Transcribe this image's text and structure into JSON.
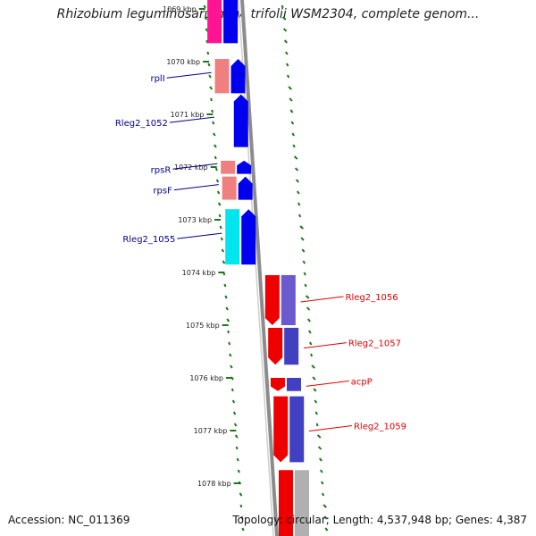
{
  "title": "Rhizobium leguminosarum bv. trifolii WSM2304, complete genom...",
  "footer": {
    "accession": "Accession: NC_011369",
    "stats": "Topology: circular; Length: 4,537,948 bp; Genes: 4,387"
  },
  "colors": {
    "backbone": "#8c8c8c",
    "ticks": "#1a7a1a",
    "left_labels": "#00008b",
    "right_labels": "#dd0000"
  },
  "scale": {
    "unit": "kbp",
    "ticks": [
      {
        "kbp": 1069,
        "label": "1069 kbp"
      },
      {
        "kbp": 1070,
        "label": "1070 kbp"
      },
      {
        "kbp": 1071,
        "label": "1071 kbp"
      },
      {
        "kbp": 1072,
        "label": "1072 kbp"
      },
      {
        "kbp": 1073,
        "label": "1073 kbp"
      },
      {
        "kbp": 1074,
        "label": "1074 kbp"
      },
      {
        "kbp": 1075,
        "label": "1075 kbp"
      },
      {
        "kbp": 1076,
        "label": "1076 kbp"
      },
      {
        "kbp": 1077,
        "label": "1077 kbp"
      },
      {
        "kbp": 1078,
        "label": "1078 kbp"
      }
    ]
  },
  "left_genes": [
    {
      "name": "rplI",
      "start": 1069.95,
      "end": 1070.6
    },
    {
      "name": "Rleg2_1052",
      "start": 1070.62,
      "end": 1071.62
    },
    {
      "name": "rpsR",
      "start": 1071.88,
      "end": 1072.13
    },
    {
      "name": "rpsF",
      "start": 1072.18,
      "end": 1072.62
    },
    {
      "name": "Rleg2_1055",
      "start": 1072.8,
      "end": 1073.85
    }
  ],
  "left_unlabeled_genes": [
    {
      "start": 1068.6,
      "end": 1069.65
    }
  ],
  "right_genes": [
    {
      "name": "Rleg2_1056",
      "start": 1074.05,
      "end": 1075.0
    },
    {
      "name": "Rleg2_1057",
      "start": 1075.05,
      "end": 1075.75
    },
    {
      "name": "acpP",
      "start": 1076.0,
      "end": 1076.25
    },
    {
      "name": "Rleg2_1059",
      "start": 1076.35,
      "end": 1077.6
    }
  ],
  "right_unlabeled_genes": [
    {
      "start": 1077.75,
      "end": 1079.2
    }
  ]
}
